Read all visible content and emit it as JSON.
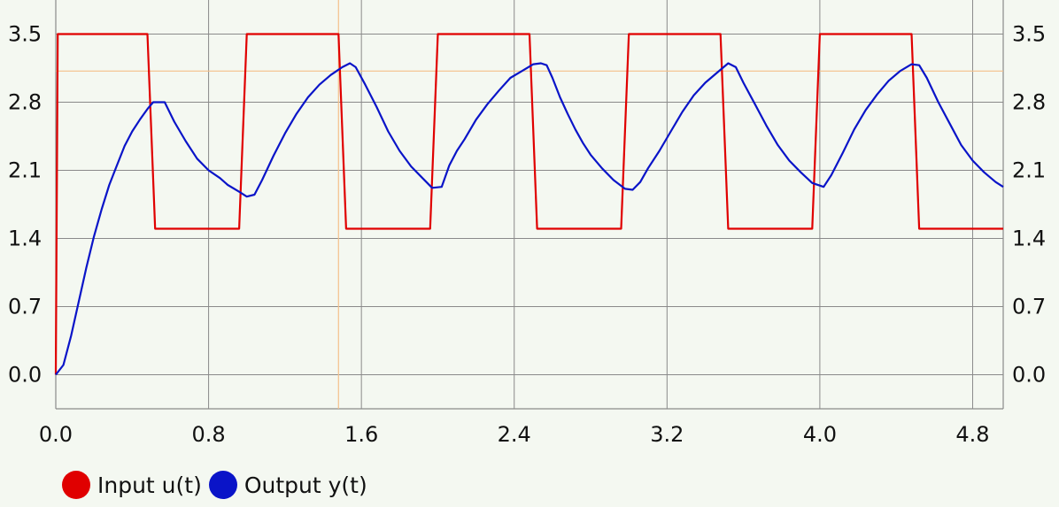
{
  "chart_data": {
    "type": "line",
    "title": "",
    "xlabel": "",
    "ylabel": "",
    "xlim": [
      0,
      4.96
    ],
    "ylim": [
      -0.35,
      3.85
    ],
    "x_ticks": [
      "0.0",
      "0.8",
      "1.6",
      "2.4",
      "3.2",
      "4.0",
      "4.8"
    ],
    "y_ticks": [
      "0.0",
      "0.7",
      "1.4",
      "2.1",
      "2.8",
      "3.5"
    ],
    "grid": true,
    "legend_position": "bottom-left",
    "crosshair": {
      "x": 1.48,
      "y": 3.12
    },
    "series": [
      {
        "name": "Input u(t)",
        "color": "#e00000",
        "points": [
          [
            0.0,
            0.0
          ],
          [
            0.01,
            3.5
          ],
          [
            0.48,
            3.5
          ],
          [
            0.52,
            1.5
          ],
          [
            0.96,
            1.5
          ],
          [
            1.0,
            3.5
          ],
          [
            1.48,
            3.5
          ],
          [
            1.52,
            1.5
          ],
          [
            1.96,
            1.5
          ],
          [
            2.0,
            3.5
          ],
          [
            2.48,
            3.5
          ],
          [
            2.52,
            1.5
          ],
          [
            2.96,
            1.5
          ],
          [
            3.0,
            3.5
          ],
          [
            3.48,
            3.5
          ],
          [
            3.52,
            1.5
          ],
          [
            3.96,
            1.5
          ],
          [
            4.0,
            3.5
          ],
          [
            4.48,
            3.5
          ],
          [
            4.52,
            1.5
          ],
          [
            4.96,
            1.5
          ]
        ]
      },
      {
        "name": "Output y(t)",
        "color": "#0a14c8",
        "points": [
          [
            0.0,
            0.0
          ],
          [
            0.04,
            0.1
          ],
          [
            0.08,
            0.4
          ],
          [
            0.12,
            0.75
          ],
          [
            0.16,
            1.1
          ],
          [
            0.2,
            1.42
          ],
          [
            0.24,
            1.7
          ],
          [
            0.28,
            1.95
          ],
          [
            0.32,
            2.15
          ],
          [
            0.36,
            2.35
          ],
          [
            0.4,
            2.5
          ],
          [
            0.44,
            2.62
          ],
          [
            0.48,
            2.73
          ],
          [
            0.51,
            2.8
          ],
          [
            0.57,
            2.8
          ],
          [
            0.62,
            2.6
          ],
          [
            0.68,
            2.4
          ],
          [
            0.74,
            2.22
          ],
          [
            0.8,
            2.1
          ],
          [
            0.86,
            2.02
          ],
          [
            0.9,
            1.95
          ],
          [
            0.96,
            1.88
          ],
          [
            1.0,
            1.83
          ],
          [
            1.04,
            1.85
          ],
          [
            1.08,
            2.0
          ],
          [
            1.14,
            2.25
          ],
          [
            1.2,
            2.48
          ],
          [
            1.26,
            2.68
          ],
          [
            1.32,
            2.85
          ],
          [
            1.38,
            2.98
          ],
          [
            1.44,
            3.08
          ],
          [
            1.5,
            3.16
          ],
          [
            1.54,
            3.2
          ],
          [
            1.57,
            3.16
          ],
          [
            1.62,
            2.98
          ],
          [
            1.68,
            2.75
          ],
          [
            1.74,
            2.5
          ],
          [
            1.8,
            2.3
          ],
          [
            1.86,
            2.14
          ],
          [
            1.92,
            2.02
          ],
          [
            1.97,
            1.92
          ],
          [
            2.02,
            1.93
          ],
          [
            2.06,
            2.15
          ],
          [
            2.1,
            2.3
          ],
          [
            2.14,
            2.42
          ],
          [
            2.2,
            2.62
          ],
          [
            2.26,
            2.78
          ],
          [
            2.32,
            2.92
          ],
          [
            2.38,
            3.05
          ],
          [
            2.44,
            3.12
          ],
          [
            2.5,
            3.19
          ],
          [
            2.54,
            3.2
          ],
          [
            2.57,
            3.18
          ],
          [
            2.6,
            3.05
          ],
          [
            2.64,
            2.85
          ],
          [
            2.68,
            2.68
          ],
          [
            2.72,
            2.52
          ],
          [
            2.76,
            2.38
          ],
          [
            2.8,
            2.26
          ],
          [
            2.86,
            2.12
          ],
          [
            2.92,
            2.0
          ],
          [
            2.98,
            1.91
          ],
          [
            3.02,
            1.9
          ],
          [
            3.06,
            1.98
          ],
          [
            3.1,
            2.12
          ],
          [
            3.16,
            2.3
          ],
          [
            3.22,
            2.5
          ],
          [
            3.28,
            2.7
          ],
          [
            3.34,
            2.87
          ],
          [
            3.4,
            3.0
          ],
          [
            3.46,
            3.1
          ],
          [
            3.52,
            3.2
          ],
          [
            3.56,
            3.16
          ],
          [
            3.6,
            3.0
          ],
          [
            3.66,
            2.78
          ],
          [
            3.72,
            2.56
          ],
          [
            3.78,
            2.36
          ],
          [
            3.84,
            2.2
          ],
          [
            3.9,
            2.08
          ],
          [
            3.96,
            1.97
          ],
          [
            4.02,
            1.93
          ],
          [
            4.06,
            2.05
          ],
          [
            4.12,
            2.28
          ],
          [
            4.18,
            2.52
          ],
          [
            4.24,
            2.72
          ],
          [
            4.3,
            2.88
          ],
          [
            4.36,
            3.02
          ],
          [
            4.42,
            3.12
          ],
          [
            4.48,
            3.19
          ],
          [
            4.52,
            3.18
          ],
          [
            4.56,
            3.05
          ],
          [
            4.62,
            2.8
          ],
          [
            4.68,
            2.58
          ],
          [
            4.74,
            2.36
          ],
          [
            4.8,
            2.2
          ],
          [
            4.86,
            2.08
          ],
          [
            4.92,
            1.98
          ],
          [
            4.96,
            1.93
          ]
        ]
      }
    ]
  },
  "legend": {
    "items": [
      {
        "label": "Input u(t)",
        "color": "#e00000"
      },
      {
        "label": "Output y(t)",
        "color": "#0a14c8"
      }
    ]
  },
  "colors": {
    "grid": "#8a8a8a",
    "crosshair": "#f5c08a",
    "background": "#f4f8f1"
  }
}
